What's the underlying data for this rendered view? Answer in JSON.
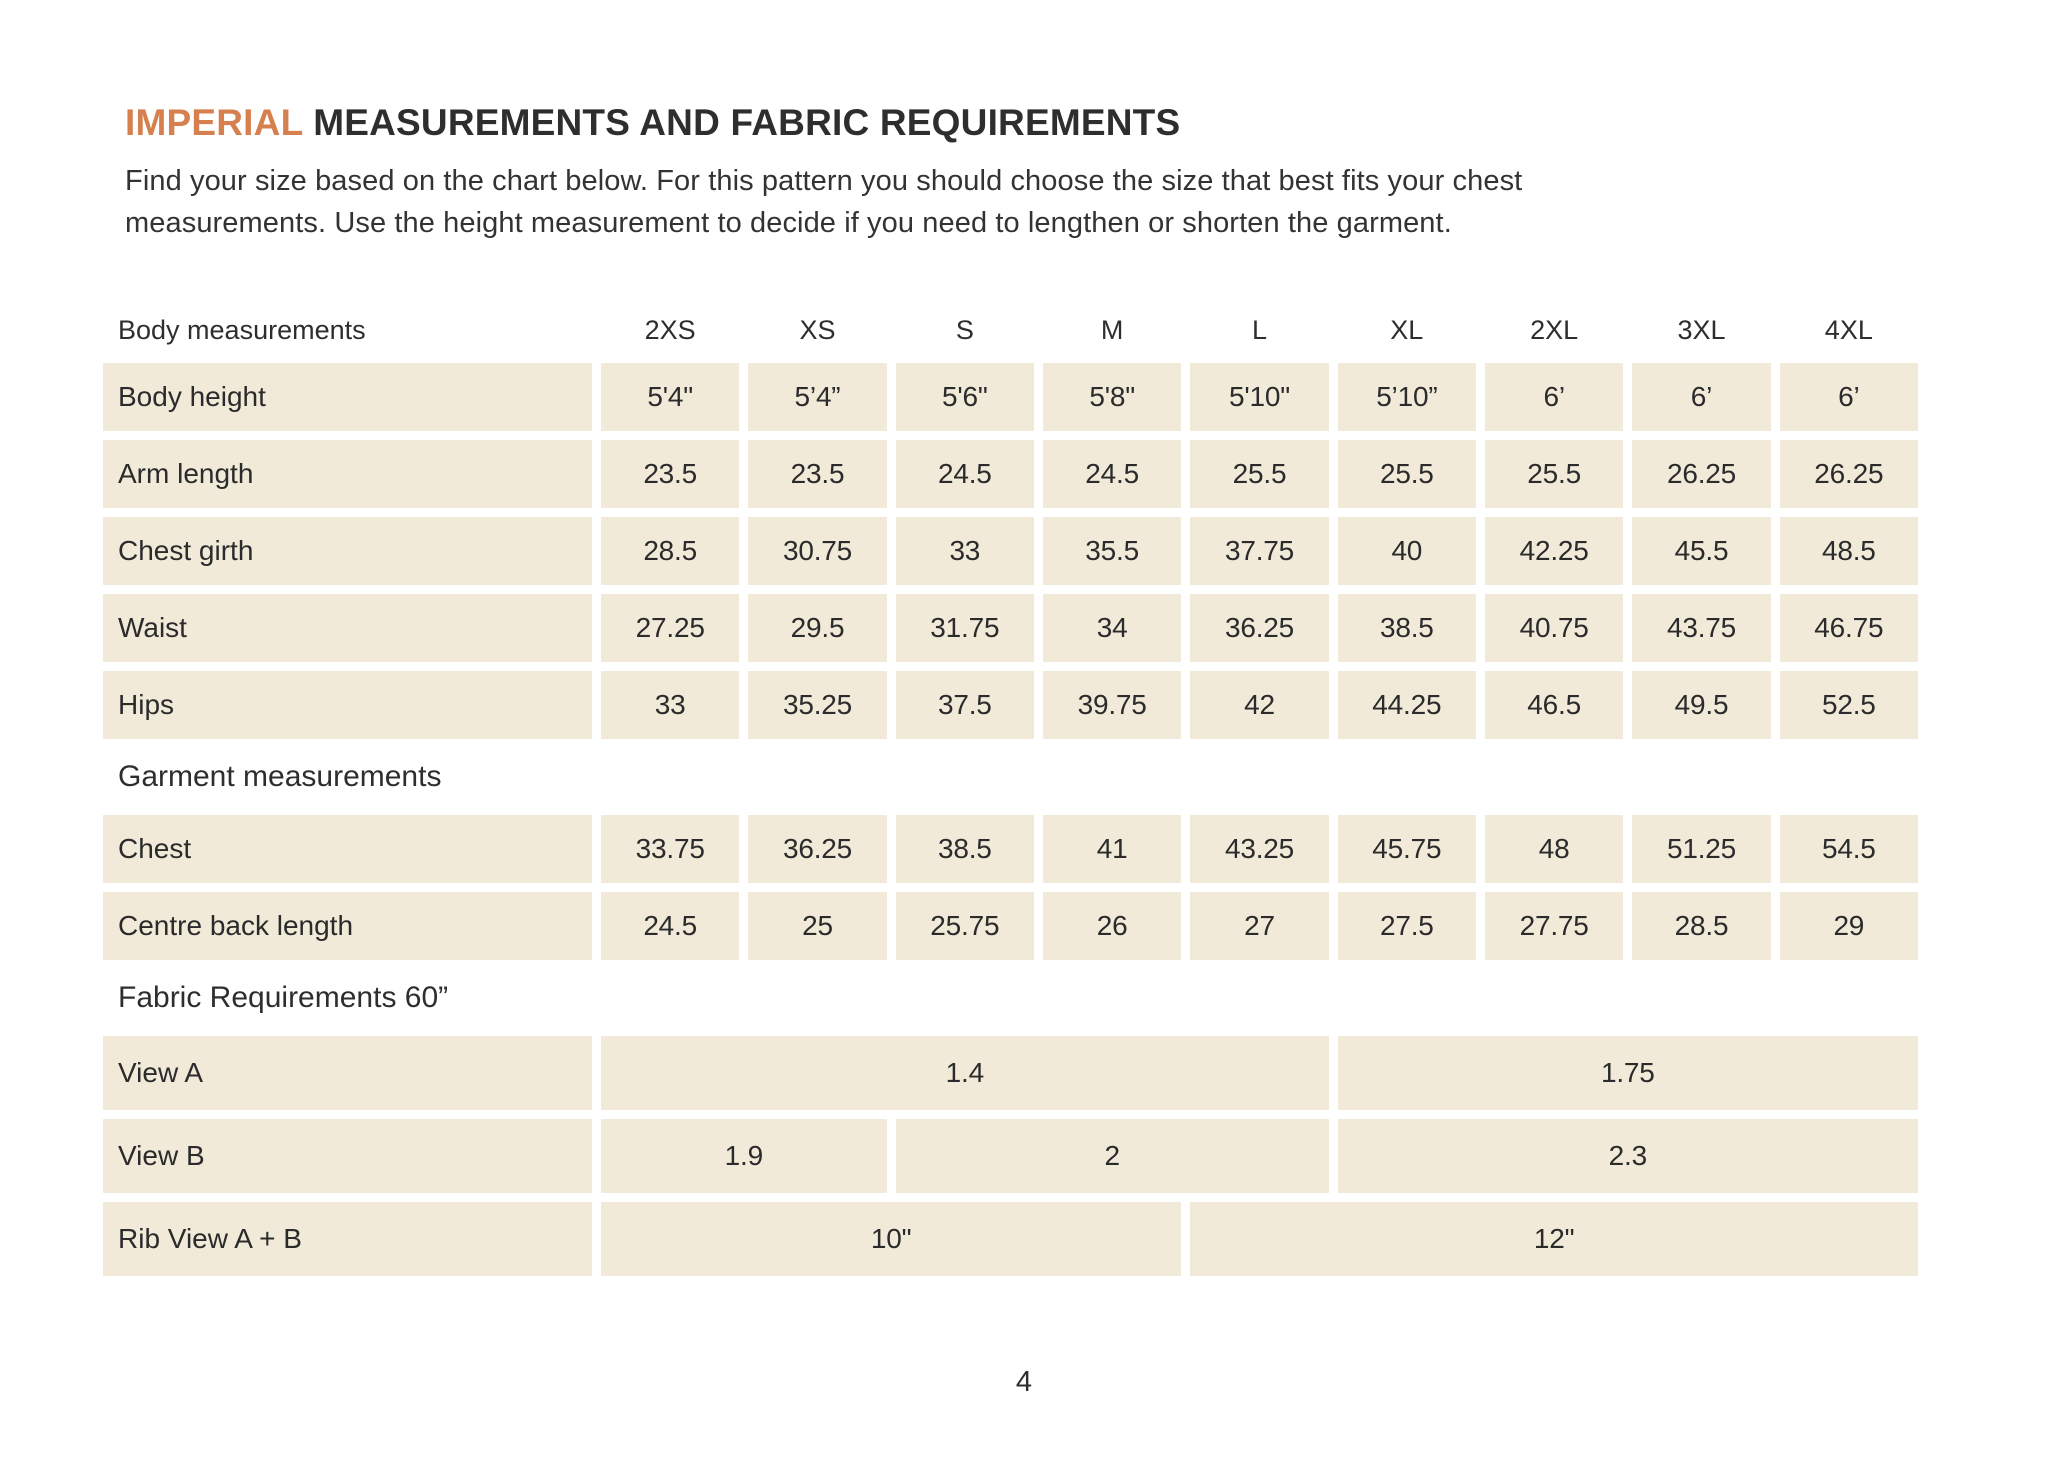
{
  "page": {
    "title_highlight": "IMPERIAL",
    "title_rest": " MEASUREMENTS AND FABRIC REQUIREMENTS",
    "intro_lines": [
      "Find your size based on the chart below. For this pattern you should choose the size that best fits your chest",
      "measurements. Use the height measurement to decide if you need to lengthen or shorten the garment."
    ],
    "page_number": "4"
  },
  "colors": {
    "accent_orange": "#d5804e",
    "cell_cream": "#f1ead9",
    "text_dark": "#2e2e2e",
    "background": "#ffffff"
  },
  "table": {
    "header": {
      "label": "Body measurements",
      "sizes": [
        "2XS",
        "XS",
        "S",
        "M",
        "L",
        "XL",
        "2XL",
        "3XL",
        "4XL"
      ]
    },
    "body_rows": [
      {
        "label": "Body height",
        "values": [
          "5'4\"",
          "5’4”",
          "5'6\"",
          "5'8\"",
          "5'10\"",
          "5’10”",
          "6’",
          "6’",
          "6’"
        ]
      },
      {
        "label": "Arm length",
        "values": [
          "23.5",
          "23.5",
          "24.5",
          "24.5",
          "25.5",
          "25.5",
          "25.5",
          "26.25",
          "26.25"
        ]
      },
      {
        "label": "Chest girth",
        "values": [
          "28.5",
          "30.75",
          "33",
          "35.5",
          "37.75",
          "40",
          "42.25",
          "45.5",
          "48.5"
        ]
      },
      {
        "label": "Waist",
        "values": [
          "27.25",
          "29.5",
          "31.75",
          "34",
          "36.25",
          "38.5",
          "40.75",
          "43.75",
          "46.75"
        ]
      },
      {
        "label": "Hips",
        "values": [
          "33",
          "35.25",
          "37.5",
          "39.75",
          "42",
          "44.25",
          "46.5",
          "49.5",
          "52.5"
        ]
      }
    ],
    "garment_section_title": "Garment measurements",
    "garment_rows": [
      {
        "label": "Chest",
        "values": [
          "33.75",
          "36.25",
          "38.5",
          "41",
          "43.25",
          "45.75",
          "48",
          "51.25",
          "54.5"
        ]
      },
      {
        "label": "Centre back length",
        "values": [
          "24.5",
          "25",
          "25.75",
          "26",
          "27",
          "27.5",
          "27.75",
          "28.5",
          "29"
        ]
      }
    ],
    "fabric_section_title": "Fabric Requirements 60”",
    "fabric_rows": [
      {
        "label": "View A",
        "cells": [
          {
            "value": "1.4",
            "span": 5
          },
          {
            "value": "1.75",
            "span": 4
          }
        ]
      },
      {
        "label": "View B",
        "cells": [
          {
            "value": "1.9",
            "span": 2
          },
          {
            "value": "2",
            "span": 3
          },
          {
            "value": "2.3",
            "span": 4
          }
        ]
      },
      {
        "label": "Rib View A + B",
        "cells": [
          {
            "value": "10\"",
            "span": 4
          },
          {
            "value": "12\"",
            "span": 5
          }
        ]
      }
    ]
  }
}
